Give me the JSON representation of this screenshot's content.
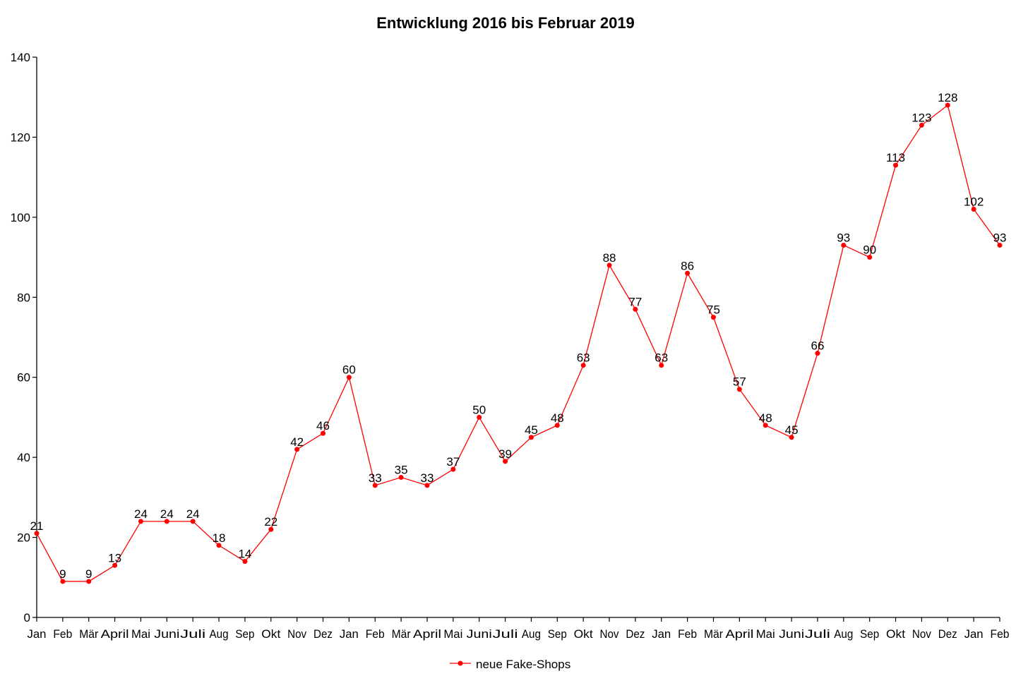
{
  "chart_data": {
    "type": "line",
    "title": "Entwicklung 2016 bis Februar 2019",
    "xlabel": "",
    "ylabel": "",
    "ylim": [
      0,
      140
    ],
    "yticks": [
      0,
      20,
      40,
      60,
      80,
      100,
      120,
      140
    ],
    "categories": [
      "Jan",
      "Feb",
      "Mär",
      "April",
      "Mai",
      "Juni",
      "Juli",
      "Aug",
      "Sep",
      "Okt",
      "Nov",
      "Dez",
      "Jan",
      "Feb",
      "Mär",
      "April",
      "Mai",
      "Juni",
      "Juli",
      "Aug",
      "Sep",
      "Okt",
      "Nov",
      "Dez",
      "Jan",
      "Feb",
      "Mär",
      "April",
      "Mai",
      "Juni",
      "Juli",
      "Aug",
      "Sep",
      "Okt",
      "Nov",
      "Dez",
      "Jan",
      "Feb"
    ],
    "series": [
      {
        "name": "neue Fake-Shops",
        "color": "#ff0000",
        "values": [
          21,
          9,
          9,
          13,
          24,
          24,
          24,
          18,
          14,
          22,
          42,
          46,
          60,
          33,
          35,
          33,
          37,
          50,
          39,
          45,
          48,
          63,
          88,
          77,
          63,
          86,
          75,
          57,
          48,
          45,
          66,
          93,
          90,
          113,
          123,
          128,
          102,
          93
        ]
      }
    ],
    "grid": false,
    "legend_position": "bottom-center"
  }
}
